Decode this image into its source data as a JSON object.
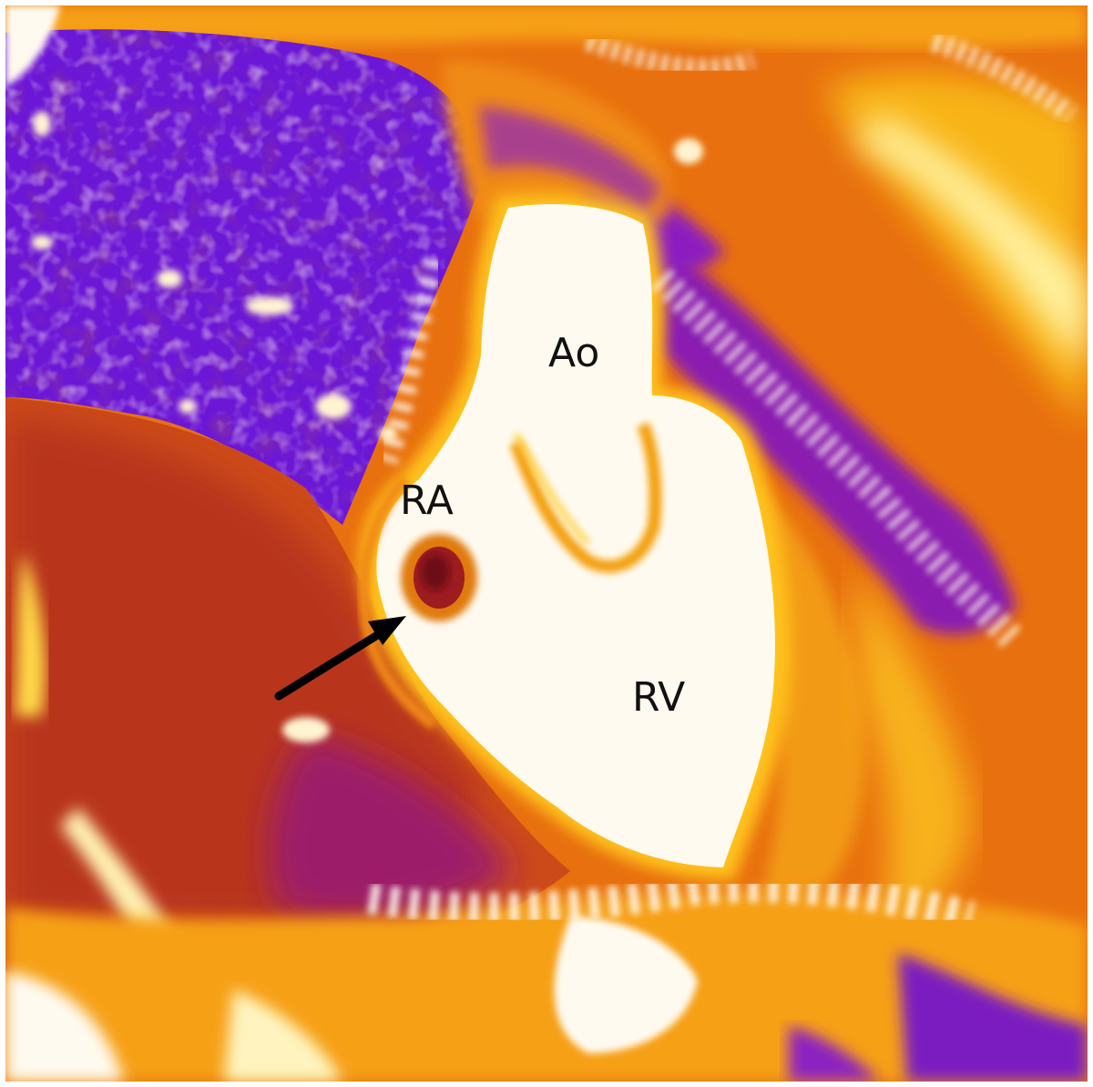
{
  "image": {
    "kind": "cardiac MRI parametric map (false-color)",
    "colormap": [
      "#3a0a6e",
      "#6a12d8",
      "#9a1aa0",
      "#c22a5a",
      "#e05a12",
      "#f59a0a",
      "#ffd21a",
      "#fffaf0"
    ]
  },
  "labels": {
    "aorta": "Ao",
    "right_atrium": "RA",
    "right_ventricle": "RV"
  },
  "annotations": {
    "arrow": {
      "color": "#000000",
      "points_to": "right_atrium_mass"
    }
  }
}
